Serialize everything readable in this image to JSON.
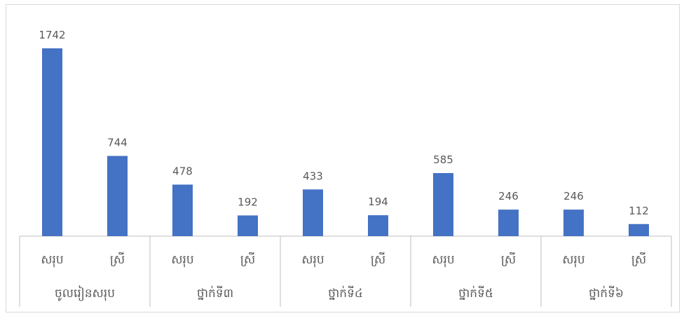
{
  "chart_data": {
    "type": "bar",
    "groups": [
      {
        "label": "ចូលរៀនសរុប",
        "items": [
          {
            "label": "សរុប",
            "value": 1742
          },
          {
            "label": "ស្រី",
            "value": 744
          }
        ]
      },
      {
        "label": "ថ្នាក់ទី៣",
        "items": [
          {
            "label": "សរុប",
            "value": 478
          },
          {
            "label": "ស្រី",
            "value": 192
          }
        ]
      },
      {
        "label": "ថ្នាក់ទី៤",
        "items": [
          {
            "label": "សរុប",
            "value": 433
          },
          {
            "label": "ស្រី",
            "value": 194
          }
        ]
      },
      {
        "label": "ថ្នាក់ទី៥",
        "items": [
          {
            "label": "សរុប",
            "value": 585
          },
          {
            "label": "ស្រី",
            "value": 246
          }
        ]
      },
      {
        "label": "ថ្នាក់ទី៦",
        "items": [
          {
            "label": "សរុប",
            "value": 246
          },
          {
            "label": "ស្រី",
            "value": 112
          }
        ]
      }
    ],
    "ylim": [
      0,
      1742
    ],
    "grid": false,
    "bar_color": "#4472c4"
  }
}
